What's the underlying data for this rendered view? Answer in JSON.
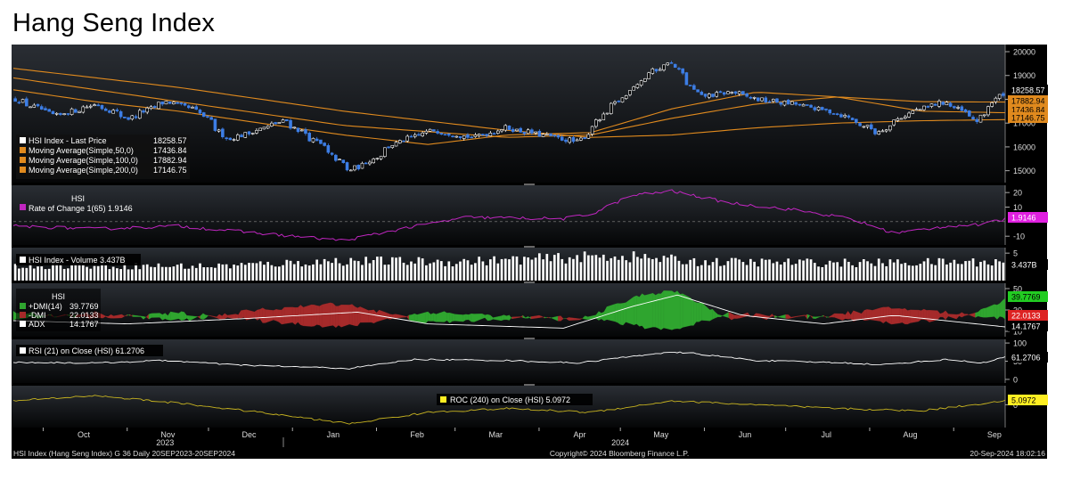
{
  "page_title": "Hang Seng Index",
  "footer": {
    "left": "HSI Index (Hang Seng Index) G 36  Daily 20SEP2023-20SEP2024",
    "center": "Copyright© 2024 Bloomberg Finance L.P.",
    "right": "20-Sep-2024 18:02:16"
  },
  "colors": {
    "background": "#000000",
    "candle_up": "#ffffff",
    "candle_down": "#3d7ee6",
    "ma": "#e08a1e",
    "roc": "#c026c0",
    "volume": "#ffffff",
    "dmi_plus": "#2fa52f",
    "dmi_minus": "#a52a2a",
    "adx": "#ffffff",
    "rsi": "#ffffff",
    "roc240": "#c8b420",
    "badge_green": "#22cc22",
    "badge_red": "#dd2222",
    "badge_orange": "#e08a1e",
    "badge_magenta": "#e020e0",
    "badge_yellow": "#ffee22"
  },
  "chart_data": [
    {
      "type": "candlestick",
      "name": "price",
      "x_range": [
        "2023-09-20",
        "2024-09-20"
      ],
      "ylim": [
        14500,
        20300
      ],
      "y_ticks": [
        "20000",
        "19000",
        "18000",
        "17000",
        "16000",
        "15000"
      ],
      "legend": [
        {
          "label": "HSI Index - Last Price",
          "value": "18258.57",
          "color": "#ffffff"
        },
        {
          "label": "Moving Average(Simple,50,0)",
          "value": "17436.84",
          "color": "#e08a1e"
        },
        {
          "label": "Moving Average(Simple,100,0)",
          "value": "17882.94",
          "color": "#e08a1e"
        },
        {
          "label": "Moving Average(Simple,200,0)",
          "value": "17146.75",
          "color": "#e08a1e"
        }
      ],
      "last_value_badges": [
        "18258.57",
        "17882.94",
        "17436.84",
        "17146.75"
      ],
      "close_keypoints": [
        {
          "date": "2023-09-20",
          "value": 18000
        },
        {
          "date": "2023-10-05",
          "value": 17300
        },
        {
          "date": "2023-10-20",
          "value": 17800
        },
        {
          "date": "2023-11-01",
          "value": 17200
        },
        {
          "date": "2023-11-15",
          "value": 17900
        },
        {
          "date": "2023-11-27",
          "value": 17500
        },
        {
          "date": "2023-12-08",
          "value": 16300
        },
        {
          "date": "2023-12-29",
          "value": 17100
        },
        {
          "date": "2024-01-10",
          "value": 16200
        },
        {
          "date": "2024-01-22",
          "value": 15000
        },
        {
          "date": "2024-01-31",
          "value": 15500
        },
        {
          "date": "2024-02-07",
          "value": 16100
        },
        {
          "date": "2024-02-22",
          "value": 16700
        },
        {
          "date": "2024-03-08",
          "value": 16400
        },
        {
          "date": "2024-03-20",
          "value": 16800
        },
        {
          "date": "2024-04-16",
          "value": 16200
        },
        {
          "date": "2024-04-26",
          "value": 17400
        },
        {
          "date": "2024-05-10",
          "value": 18900
        },
        {
          "date": "2024-05-20",
          "value": 19600
        },
        {
          "date": "2024-05-31",
          "value": 18100
        },
        {
          "date": "2024-06-12",
          "value": 18300
        },
        {
          "date": "2024-06-21",
          "value": 18000
        },
        {
          "date": "2024-07-05",
          "value": 17800
        },
        {
          "date": "2024-07-22",
          "value": 17400
        },
        {
          "date": "2024-08-05",
          "value": 16600
        },
        {
          "date": "2024-08-16",
          "value": 17400
        },
        {
          "date": "2024-08-30",
          "value": 17900
        },
        {
          "date": "2024-09-11",
          "value": 17100
        },
        {
          "date": "2024-09-20",
          "value": 18258.57
        }
      ],
      "ma50_keypoints": [
        {
          "date": "2023-09-20",
          "value": 18400
        },
        {
          "date": "2023-10-20",
          "value": 17900
        },
        {
          "date": "2023-11-20",
          "value": 17500
        },
        {
          "date": "2023-12-20",
          "value": 17000
        },
        {
          "date": "2024-01-20",
          "value": 16500
        },
        {
          "date": "2024-02-20",
          "value": 16100
        },
        {
          "date": "2024-03-20",
          "value": 16500
        },
        {
          "date": "2024-04-20",
          "value": 16600
        },
        {
          "date": "2024-05-20",
          "value": 17600
        },
        {
          "date": "2024-06-20",
          "value": 18300
        },
        {
          "date": "2024-07-20",
          "value": 18100
        },
        {
          "date": "2024-08-20",
          "value": 17500
        },
        {
          "date": "2024-09-20",
          "value": 17436.84
        }
      ],
      "ma100_keypoints": [
        {
          "date": "2023-09-20",
          "value": 18900
        },
        {
          "date": "2023-11-20",
          "value": 17900
        },
        {
          "date": "2024-01-20",
          "value": 16900
        },
        {
          "date": "2024-03-20",
          "value": 16400
        },
        {
          "date": "2024-04-20",
          "value": 16500
        },
        {
          "date": "2024-05-20",
          "value": 17200
        },
        {
          "date": "2024-06-20",
          "value": 17800
        },
        {
          "date": "2024-07-20",
          "value": 18100
        },
        {
          "date": "2024-08-20",
          "value": 17900
        },
        {
          "date": "2024-09-20",
          "value": 17882.94
        }
      ],
      "ma200_keypoints": [
        {
          "date": "2023-09-20",
          "value": 19300
        },
        {
          "date": "2023-11-20",
          "value": 18500
        },
        {
          "date": "2024-01-20",
          "value": 17500
        },
        {
          "date": "2024-03-20",
          "value": 16700
        },
        {
          "date": "2024-04-20",
          "value": 16400
        },
        {
          "date": "2024-05-20",
          "value": 16500
        },
        {
          "date": "2024-06-20",
          "value": 16800
        },
        {
          "date": "2024-07-20",
          "value": 17000
        },
        {
          "date": "2024-08-20",
          "value": 17100
        },
        {
          "date": "2024-09-20",
          "value": 17146.75
        }
      ]
    },
    {
      "type": "line",
      "name": "rate_of_change",
      "ylim": [
        -16,
        25
      ],
      "y_ticks": [
        "20",
        "10",
        "-10"
      ],
      "legend_title": "HSI",
      "legend": [
        {
          "label": "Rate of Change 1(65)",
          "value": "1.9146",
          "color": "#c026c0"
        }
      ],
      "badge": "1.9146",
      "keypoints": [
        {
          "date": "2023-09-20",
          "value": -3
        },
        {
          "date": "2023-10-20",
          "value": -5
        },
        {
          "date": "2023-11-20",
          "value": -3
        },
        {
          "date": "2023-12-20",
          "value": -8
        },
        {
          "date": "2024-01-20",
          "value": -13
        },
        {
          "date": "2024-02-10",
          "value": -5
        },
        {
          "date": "2024-03-05",
          "value": 3
        },
        {
          "date": "2024-04-10",
          "value": 2
        },
        {
          "date": "2024-04-20",
          "value": 5
        },
        {
          "date": "2024-05-05",
          "value": 18
        },
        {
          "date": "2024-05-20",
          "value": 21
        },
        {
          "date": "2024-06-10",
          "value": 13
        },
        {
          "date": "2024-07-05",
          "value": 8
        },
        {
          "date": "2024-07-25",
          "value": 2
        },
        {
          "date": "2024-08-10",
          "value": -8
        },
        {
          "date": "2024-08-30",
          "value": -3
        },
        {
          "date": "2024-09-12",
          "value": -2
        },
        {
          "date": "2024-09-20",
          "value": 1.9146
        }
      ]
    },
    {
      "type": "bar",
      "name": "volume",
      "unit": "B",
      "ylim": [
        0,
        6
      ],
      "y_ticks": [
        "5"
      ],
      "legend": [
        {
          "label": "HSI Index - Volume",
          "value": "3.437B",
          "color": "#ffffff"
        }
      ],
      "badge": "3.437B",
      "keypoints": [
        {
          "date": "2023-09-20",
          "value": 2.8
        },
        {
          "date": "2023-12-01",
          "value": 2.6
        },
        {
          "date": "2024-01-20",
          "value": 3.6
        },
        {
          "date": "2024-03-01",
          "value": 3.4
        },
        {
          "date": "2024-05-01",
          "value": 4.5
        },
        {
          "date": "2024-06-01",
          "value": 3.4
        },
        {
          "date": "2024-08-01",
          "value": 3.2
        },
        {
          "date": "2024-09-20",
          "value": 3.437
        }
      ]
    },
    {
      "type": "area",
      "name": "dmi",
      "ylim": [
        5,
        55
      ],
      "y_ticks": [
        "50",
        "30",
        "10"
      ],
      "legend_title": "HSI",
      "legend": [
        {
          "label": "+DMI(14)",
          "value": "39.7769",
          "color": "#2fa52f"
        },
        {
          "label": "-DMI",
          "value": "22.0133",
          "color": "#a52a2a"
        },
        {
          "label": "ADX",
          "value": "14.1767",
          "color": "#ffffff"
        }
      ],
      "badges": [
        "39.7769",
        "22.0133",
        "14.1767"
      ],
      "adx_keypoints": [
        {
          "date": "2023-09-20",
          "value": 20
        },
        {
          "date": "2023-11-01",
          "value": 17
        },
        {
          "date": "2023-12-15",
          "value": 22
        },
        {
          "date": "2024-01-25",
          "value": 28
        },
        {
          "date": "2024-02-20",
          "value": 17
        },
        {
          "date": "2024-04-10",
          "value": 13
        },
        {
          "date": "2024-05-05",
          "value": 33
        },
        {
          "date": "2024-05-22",
          "value": 44
        },
        {
          "date": "2024-06-15",
          "value": 25
        },
        {
          "date": "2024-07-15",
          "value": 17
        },
        {
          "date": "2024-08-10",
          "value": 25
        },
        {
          "date": "2024-09-20",
          "value": 14.1767
        }
      ],
      "plus_keypoints": [
        {
          "date": "2023-09-20",
          "value": 28
        },
        {
          "date": "2023-10-20",
          "value": 22
        },
        {
          "date": "2023-11-20",
          "value": 27
        },
        {
          "date": "2023-12-20",
          "value": 20
        },
        {
          "date": "2024-01-20",
          "value": 14
        },
        {
          "date": "2024-02-20",
          "value": 28
        },
        {
          "date": "2024-03-20",
          "value": 24
        },
        {
          "date": "2024-04-15",
          "value": 20
        },
        {
          "date": "2024-05-10",
          "value": 45
        },
        {
          "date": "2024-05-22",
          "value": 47
        },
        {
          "date": "2024-06-10",
          "value": 22
        },
        {
          "date": "2024-07-10",
          "value": 24
        },
        {
          "date": "2024-08-10",
          "value": 17
        },
        {
          "date": "2024-09-05",
          "value": 24
        },
        {
          "date": "2024-09-20",
          "value": 39.7769
        }
      ],
      "minus_keypoints": [
        {
          "date": "2023-09-20",
          "value": 22
        },
        {
          "date": "2023-10-20",
          "value": 27
        },
        {
          "date": "2023-11-20",
          "value": 20
        },
        {
          "date": "2023-12-20",
          "value": 30
        },
        {
          "date": "2024-01-20",
          "value": 36
        },
        {
          "date": "2024-02-20",
          "value": 18
        },
        {
          "date": "2024-03-20",
          "value": 22
        },
        {
          "date": "2024-04-15",
          "value": 24
        },
        {
          "date": "2024-05-10",
          "value": 14
        },
        {
          "date": "2024-05-22",
          "value": 12
        },
        {
          "date": "2024-06-10",
          "value": 27
        },
        {
          "date": "2024-07-10",
          "value": 23
        },
        {
          "date": "2024-08-10",
          "value": 32
        },
        {
          "date": "2024-09-05",
          "value": 26
        },
        {
          "date": "2024-09-20",
          "value": 22.0133
        }
      ]
    },
    {
      "type": "line",
      "name": "rsi",
      "ylim": [
        -10,
        110
      ],
      "y_ticks": [
        "100",
        "50",
        "0"
      ],
      "legend": [
        {
          "label": "RSI (21)  on Close (HSI)",
          "value": "61.2706",
          "color": "#ffffff"
        }
      ],
      "badge": "61.2706",
      "keypoints": [
        {
          "date": "2023-09-20",
          "value": 47
        },
        {
          "date": "2023-10-20",
          "value": 45
        },
        {
          "date": "2023-11-15",
          "value": 52
        },
        {
          "date": "2023-12-10",
          "value": 40
        },
        {
          "date": "2024-01-22",
          "value": 30
        },
        {
          "date": "2024-02-15",
          "value": 55
        },
        {
          "date": "2024-03-20",
          "value": 52
        },
        {
          "date": "2024-04-15",
          "value": 45
        },
        {
          "date": "2024-05-15",
          "value": 72
        },
        {
          "date": "2024-05-25",
          "value": 74
        },
        {
          "date": "2024-06-20",
          "value": 52
        },
        {
          "date": "2024-07-25",
          "value": 45
        },
        {
          "date": "2024-08-05",
          "value": 40
        },
        {
          "date": "2024-08-30",
          "value": 55
        },
        {
          "date": "2024-09-11",
          "value": 45
        },
        {
          "date": "2024-09-20",
          "value": 61.2706
        }
      ]
    },
    {
      "type": "line",
      "name": "roc240",
      "ylim": [
        -30,
        25
      ],
      "y_ticks": [
        "0"
      ],
      "legend": [
        {
          "label": "ROC (240)  on Close (HSI)",
          "value": "5.0972",
          "color": "#ffee22"
        }
      ],
      "badge": "5.0972",
      "keypoints": [
        {
          "date": "2023-09-20",
          "value": 5
        },
        {
          "date": "2023-10-20",
          "value": 12
        },
        {
          "date": "2023-11-20",
          "value": 2
        },
        {
          "date": "2023-12-20",
          "value": -10
        },
        {
          "date": "2024-01-22",
          "value": -25
        },
        {
          "date": "2024-02-20",
          "value": -10
        },
        {
          "date": "2024-03-20",
          "value": -5
        },
        {
          "date": "2024-04-20",
          "value": -10
        },
        {
          "date": "2024-05-20",
          "value": 5
        },
        {
          "date": "2024-06-20",
          "value": 0
        },
        {
          "date": "2024-07-20",
          "value": -5
        },
        {
          "date": "2024-08-20",
          "value": -8
        },
        {
          "date": "2024-09-20",
          "value": 5.0972
        }
      ]
    }
  ],
  "x_axis": {
    "months": [
      {
        "label": "Oct",
        "date": "2023-10-01"
      },
      {
        "label": "Nov",
        "date": "2023-11-01"
      },
      {
        "label": "Dec",
        "date": "2023-12-01"
      },
      {
        "label": "Jan",
        "date": "2024-01-01"
      },
      {
        "label": "Feb",
        "date": "2024-02-01"
      },
      {
        "label": "Mar",
        "date": "2024-03-01"
      },
      {
        "label": "Apr",
        "date": "2024-04-01"
      },
      {
        "label": "May",
        "date": "2024-05-01"
      },
      {
        "label": "Jun",
        "date": "2024-06-01"
      },
      {
        "label": "Jul",
        "date": "2024-07-01"
      },
      {
        "label": "Aug",
        "date": "2024-08-01"
      },
      {
        "label": "Sep",
        "date": "2024-09-01"
      }
    ],
    "years": [
      {
        "label": "2023",
        "date": "2023-11-15"
      },
      {
        "label": "2024",
        "date": "2024-05-01"
      }
    ]
  }
}
